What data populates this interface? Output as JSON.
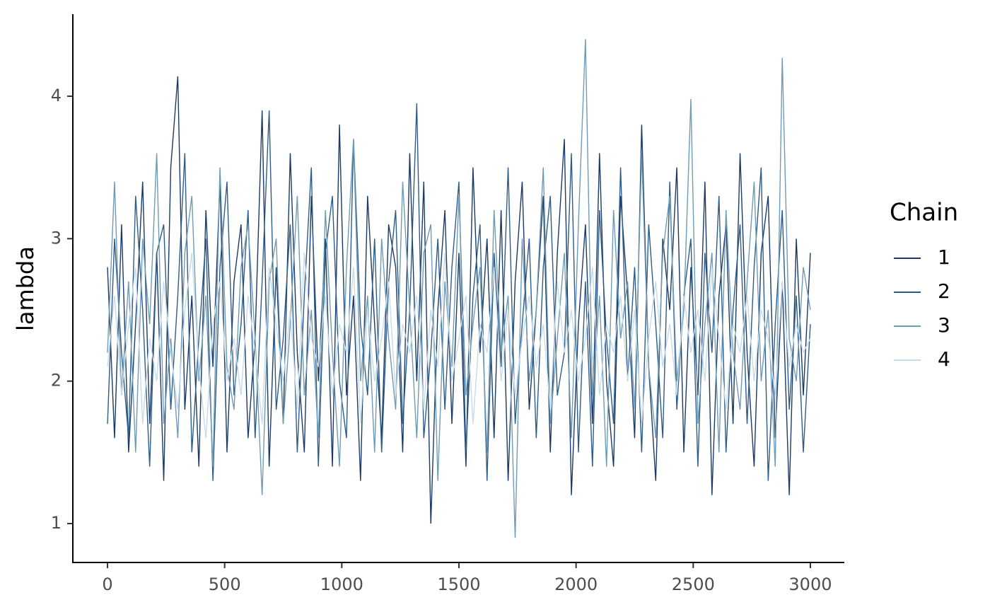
{
  "chart_data": {
    "type": "line",
    "y_label": "lambda",
    "legend_title": "Chain",
    "legend_position": "right",
    "xlim": [
      -148,
      3145
    ],
    "ylim": [
      0.727,
      4.576
    ],
    "xticks": [
      0,
      500,
      1000,
      1500,
      2000,
      2500,
      3000
    ],
    "yticks": [
      1,
      2,
      3,
      4
    ],
    "x": [
      0,
      30,
      60,
      90,
      120,
      150,
      180,
      210,
      240,
      270,
      300,
      330,
      360,
      390,
      420,
      450,
      480,
      510,
      540,
      570,
      600,
      630,
      660,
      690,
      720,
      750,
      780,
      810,
      840,
      870,
      900,
      930,
      960,
      990,
      1020,
      1050,
      1080,
      1110,
      1140,
      1170,
      1200,
      1230,
      1260,
      1290,
      1320,
      1350,
      1380,
      1410,
      1440,
      1470,
      1500,
      1530,
      1560,
      1590,
      1620,
      1650,
      1680,
      1710,
      1740,
      1770,
      1800,
      1830,
      1860,
      1890,
      1920,
      1950,
      1980,
      2010,
      2040,
      2070,
      2100,
      2130,
      2160,
      2190,
      2220,
      2250,
      2280,
      2310,
      2340,
      2370,
      2400,
      2430,
      2460,
      2490,
      2520,
      2550,
      2580,
      2610,
      2640,
      2670,
      2700,
      2730,
      2760,
      2790,
      2820,
      2850,
      2880,
      2910,
      2940,
      2970,
      3000
    ],
    "series": [
      {
        "name": "1",
        "color": "#1b3a66",
        "values": [
          2.8,
          1.6,
          3.1,
          1.5,
          2.4,
          3.4,
          1.7,
          2.9,
          1.3,
          3.5,
          4.14,
          1.8,
          2.6,
          1.4,
          3.2,
          2.1,
          3.4,
          1.5,
          2.7,
          3.1,
          1.6,
          2.3,
          3.9,
          1.4,
          2.8,
          1.7,
          3.6,
          2.2,
          1.5,
          3.3,
          2.0,
          3.0,
          1.4,
          3.8,
          1.9,
          2.6,
          1.3,
          3.3,
          2.4,
          1.6,
          3.1,
          2.8,
          1.5,
          3.6,
          2.0,
          3.4,
          1.0,
          2.5,
          3.2,
          1.7,
          2.9,
          1.4,
          3.5,
          2.2,
          3.0,
          1.6,
          3.2,
          1.3,
          2.7,
          3.4,
          1.8,
          2.5,
          3.3,
          1.5,
          2.9,
          3.7,
          1.2,
          2.4,
          3.1,
          1.7,
          3.6,
          2.0,
          1.4,
          3.3,
          2.6,
          1.6,
          3.8,
          2.1,
          1.3,
          3.0,
          2.5,
          3.5,
          1.5,
          2.8,
          1.9,
          3.4,
          1.2,
          2.6,
          3.1,
          1.7,
          3.6,
          2.2,
          1.4,
          2.9,
          3.3,
          1.6,
          2.7,
          1.2,
          3.0,
          1.9,
          2.9
        ]
      },
      {
        "name": "2",
        "color": "#2e5c8a",
        "values": [
          1.7,
          3.0,
          2.2,
          1.6,
          3.3,
          2.5,
          1.4,
          2.9,
          3.1,
          1.8,
          2.6,
          3.6,
          1.5,
          2.3,
          3.0,
          1.3,
          2.8,
          3.4,
          1.9,
          2.4,
          3.2,
          1.6,
          2.7,
          3.9,
          1.8,
          2.3,
          3.1,
          1.5,
          2.6,
          3.5,
          1.4,
          2.9,
          3.3,
          2.0,
          1.6,
          3.7,
          2.4,
          1.9,
          3.0,
          1.5,
          2.7,
          3.2,
          1.7,
          2.5,
          3.95,
          1.6,
          2.2,
          3.0,
          1.8,
          2.8,
          3.4,
          1.5,
          2.6,
          3.1,
          1.3,
          2.9,
          2.1,
          3.5,
          1.7,
          2.4,
          3.0,
          1.6,
          2.8,
          3.3,
          1.9,
          2.2,
          3.6,
          1.5,
          2.7,
          1.4,
          3.2,
          2.3,
          1.7,
          3.5,
          2.0,
          2.8,
          1.5,
          3.1,
          2.4,
          1.6,
          3.4,
          1.8,
          2.6,
          3.0,
          1.4,
          2.9,
          2.2,
          3.3,
          1.5,
          2.5,
          3.1,
          1.7,
          2.8,
          3.5,
          1.3,
          2.4,
          3.2,
          1.8,
          2.6,
          1.5,
          2.4
        ]
      },
      {
        "name": "3",
        "color": "#6e9bb5",
        "values": [
          2.2,
          3.4,
          1.9,
          2.7,
          1.5,
          3.0,
          2.4,
          3.6,
          1.7,
          2.3,
          1.6,
          2.9,
          3.3,
          2.0,
          2.6,
          1.4,
          3.5,
          2.1,
          1.8,
          2.8,
          3.1,
          2.3,
          1.2,
          2.7,
          3.0,
          1.7,
          2.4,
          3.3,
          1.9,
          2.5,
          1.6,
          3.2,
          2.2,
          1.4,
          2.8,
          3.7,
          2.0,
          2.6,
          1.5,
          3.0,
          2.3,
          1.8,
          3.4,
          2.5,
          1.6,
          2.9,
          3.1,
          1.3,
          2.7,
          2.1,
          3.3,
          1.9,
          2.4,
          2.8,
          1.5,
          3.2,
          2.2,
          2.6,
          0.9,
          3.0,
          2.0,
          2.5,
          3.5,
          1.7,
          2.3,
          2.9,
          1.6,
          3.1,
          4.4,
          1.9,
          2.6,
          1.4,
          3.2,
          2.3,
          2.7,
          1.8,
          3.6,
          2.1,
          1.6,
          2.9,
          3.3,
          2.0,
          2.5,
          3.98,
          1.7,
          2.4,
          2.9,
          1.5,
          3.2,
          2.2,
          1.8,
          2.7,
          3.4,
          2.0,
          2.5,
          1.4,
          4.27,
          2.3,
          2.0,
          2.8,
          2.5
        ]
      },
      {
        "name": "4",
        "color": "#c7dbe8",
        "values": [
          2.1,
          2.6,
          1.9,
          2.4,
          2.8,
          1.7,
          2.3,
          2.0,
          2.7,
          2.2,
          1.8,
          2.5,
          2.9,
          2.1,
          1.6,
          2.4,
          2.7,
          2.0,
          2.3,
          1.9,
          2.6,
          2.2,
          1.7,
          2.8,
          2.4,
          2.0,
          2.5,
          1.8,
          2.9,
          2.3,
          2.1,
          2.6,
          1.9,
          2.4,
          2.2,
          2.8,
          1.7,
          2.5,
          2.0,
          2.3,
          2.7,
          1.9,
          2.4,
          2.2,
          2.6,
          1.8,
          2.5,
          2.1,
          2.9,
          2.0,
          2.3,
          2.6,
          1.7,
          2.4,
          2.2,
          2.8,
          2.0,
          2.5,
          1.9,
          2.3,
          2.6,
          2.1,
          2.4,
          1.8,
          2.7,
          2.2,
          2.5,
          2.0,
          2.3,
          2.8,
          1.9,
          2.4,
          2.2,
          2.6,
          2.0,
          2.5,
          1.7,
          2.3,
          2.7,
          2.1,
          2.4,
          1.9,
          2.6,
          2.2,
          2.5,
          2.0,
          2.8,
          2.3,
          1.8,
          2.4,
          2.2,
          2.6,
          2.0,
          2.5,
          2.3,
          1.9,
          2.7,
          2.1,
          2.4,
          2.2,
          2.3
        ]
      }
    ]
  }
}
